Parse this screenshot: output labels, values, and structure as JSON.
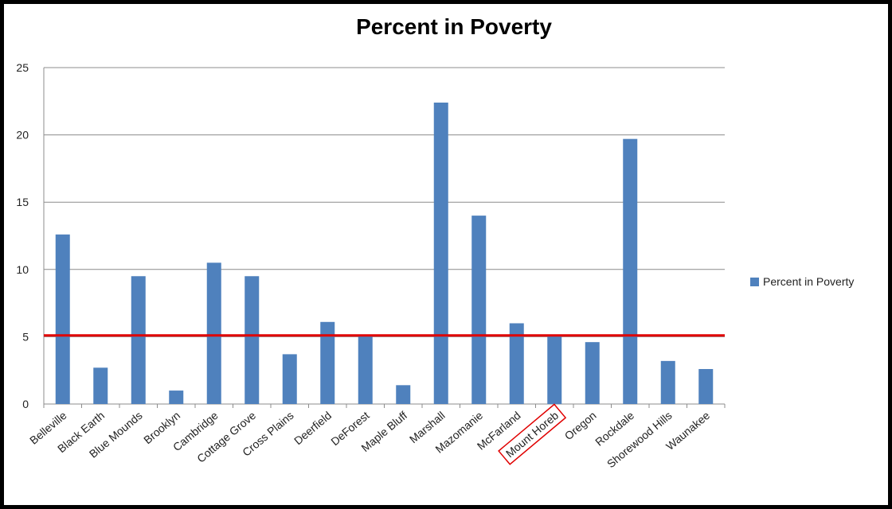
{
  "chart_data": {
    "type": "bar",
    "title": "Percent in Poverty",
    "categories": [
      "Belleville",
      "Black Earth",
      "Blue Mounds",
      "Brooklyn",
      "Cambridge",
      "Cottage Grove",
      "Cross Plains",
      "Deerfield",
      "DeForest",
      "Maple Bluff",
      "Marshall",
      "Mazomanie",
      "McFarland",
      "Mount Horeb",
      "Oregon",
      "Rockdale",
      "Shorewood Hills",
      "Waunakee"
    ],
    "series": [
      {
        "name": "Percent in Poverty",
        "values": [
          12.6,
          2.7,
          9.5,
          1.0,
          10.5,
          9.5,
          3.7,
          6.1,
          5.1,
          1.4,
          22.4,
          14.0,
          6.0,
          5.1,
          4.6,
          19.7,
          3.2,
          2.6
        ]
      }
    ],
    "ylim": [
      0,
      25
    ],
    "yticks": [
      "0",
      "5",
      "10",
      "15",
      "20",
      "25"
    ],
    "grid": true,
    "legend_position": "right",
    "reference_line": {
      "value": 5.1,
      "color": "#e00000"
    },
    "highlighted_category": "Mount Horeb",
    "highlight_color": "#e00000",
    "bar_color": "#4f81bd"
  }
}
